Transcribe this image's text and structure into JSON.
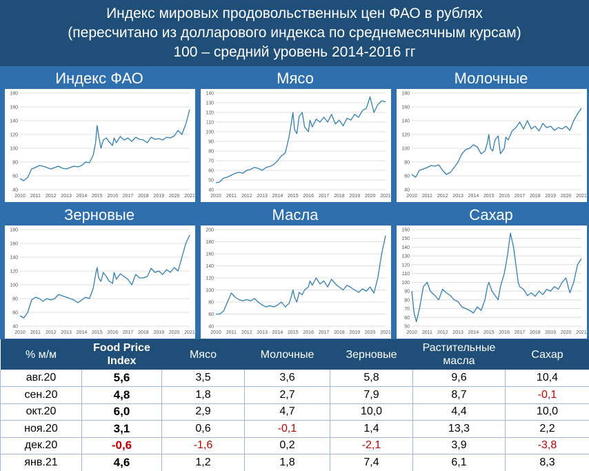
{
  "header": {
    "line1": "Индекс мировых продовольственных цен ФАО в рублях",
    "line2": "(пересчитано из долларового индекса по среднемесячным курсам)",
    "line3": "100 – средний уровень 2014-2016 гг"
  },
  "colors": {
    "header_bg": "#1f4e79",
    "panel_bg": "#2f6fad",
    "line": "#2f7fb5",
    "negative": "#c00000"
  },
  "chart_data": [
    {
      "type": "line",
      "title": "Индекс ФАО",
      "x_ticks": [
        "2010",
        "2011",
        "2012",
        "2013",
        "2014",
        "2015",
        "2016",
        "2017",
        "2018",
        "2019",
        "2020",
        "2021"
      ],
      "ylim": [
        40,
        180
      ],
      "y_ticks": [
        40,
        60,
        80,
        100,
        120,
        140,
        160,
        180
      ],
      "grid": true,
      "x": [
        2010.0,
        2010.25,
        2010.5,
        2010.75,
        2011.0,
        2011.25,
        2011.5,
        2011.75,
        2012.0,
        2012.25,
        2012.5,
        2012.75,
        2013.0,
        2013.25,
        2013.5,
        2013.75,
        2014.0,
        2014.25,
        2014.5,
        2014.75,
        2014.9,
        2015.0,
        2015.1,
        2015.25,
        2015.4,
        2015.6,
        2015.75,
        2016.0,
        2016.1,
        2016.25,
        2016.5,
        2016.75,
        2017.0,
        2017.25,
        2017.5,
        2017.75,
        2018.0,
        2018.25,
        2018.5,
        2018.75,
        2019.0,
        2019.25,
        2019.5,
        2019.75,
        2020.0,
        2020.25,
        2020.5,
        2020.75,
        2021.0
      ],
      "y": [
        56,
        53,
        58,
        70,
        72,
        75,
        74,
        72,
        70,
        72,
        74,
        71,
        70,
        72,
        74,
        73,
        75,
        80,
        79,
        90,
        108,
        133,
        118,
        100,
        112,
        115,
        110,
        104,
        115,
        108,
        117,
        112,
        115,
        110,
        116,
        113,
        112,
        108,
        116,
        113,
        114,
        112,
        116,
        115,
        118,
        126,
        120,
        135,
        156
      ]
    },
    {
      "type": "line",
      "title": "Мясо",
      "x_ticks": [
        "2010",
        "2011",
        "2012",
        "2013",
        "2014",
        "2015",
        "2016",
        "2017",
        "2018",
        "2019",
        "2020",
        "2021"
      ],
      "ylim": [
        40,
        140
      ],
      "y_ticks": [
        40,
        50,
        60,
        70,
        80,
        90,
        100,
        110,
        120,
        130,
        140
      ],
      "grid": true,
      "x": [
        2010.0,
        2010.25,
        2010.5,
        2010.75,
        2011.0,
        2011.25,
        2011.5,
        2011.75,
        2012.0,
        2012.25,
        2012.5,
        2012.75,
        2013.0,
        2013.25,
        2013.5,
        2013.75,
        2014.0,
        2014.25,
        2014.5,
        2014.75,
        2014.9,
        2015.0,
        2015.1,
        2015.25,
        2015.4,
        2015.6,
        2015.75,
        2016.0,
        2016.1,
        2016.25,
        2016.5,
        2016.75,
        2017.0,
        2017.25,
        2017.5,
        2017.75,
        2018.0,
        2018.25,
        2018.5,
        2018.75,
        2019.0,
        2019.25,
        2019.5,
        2019.75,
        2020.0,
        2020.25,
        2020.5,
        2020.75,
        2021.0
      ],
      "y": [
        47,
        48,
        52,
        53,
        55,
        57,
        58,
        57,
        60,
        61,
        63,
        62,
        60,
        63,
        64,
        66,
        70,
        75,
        78,
        95,
        110,
        120,
        102,
        98,
        116,
        120,
        105,
        100,
        112,
        105,
        113,
        110,
        115,
        110,
        118,
        108,
        112,
        106,
        114,
        112,
        118,
        115,
        122,
        124,
        136,
        120,
        128,
        132,
        131
      ]
    },
    {
      "type": "line",
      "title": "Молочные",
      "x_ticks": [
        "2010",
        "2011",
        "2012",
        "2013",
        "2014",
        "2015",
        "2016",
        "2017",
        "2018",
        "2019",
        "2020",
        "2021"
      ],
      "ylim": [
        40,
        180
      ],
      "y_ticks": [
        40,
        60,
        80,
        100,
        120,
        140,
        160,
        180
      ],
      "grid": true,
      "x": [
        2010.0,
        2010.25,
        2010.5,
        2010.75,
        2011.0,
        2011.25,
        2011.5,
        2011.75,
        2012.0,
        2012.25,
        2012.5,
        2012.75,
        2013.0,
        2013.25,
        2013.5,
        2013.75,
        2014.0,
        2014.25,
        2014.5,
        2014.75,
        2014.9,
        2015.0,
        2015.1,
        2015.25,
        2015.4,
        2015.6,
        2015.75,
        2016.0,
        2016.1,
        2016.25,
        2016.5,
        2016.75,
        2017.0,
        2017.25,
        2017.5,
        2017.75,
        2018.0,
        2018.25,
        2018.5,
        2018.75,
        2019.0,
        2019.25,
        2019.5,
        2019.75,
        2020.0,
        2020.25,
        2020.5,
        2020.75,
        2021.0
      ],
      "y": [
        62,
        58,
        68,
        70,
        72,
        75,
        74,
        76,
        68,
        62,
        65,
        72,
        80,
        92,
        98,
        100,
        105,
        102,
        92,
        96,
        108,
        120,
        100,
        96,
        112,
        118,
        92,
        100,
        116,
        112,
        125,
        130,
        138,
        128,
        140,
        128,
        132,
        125,
        136,
        130,
        132,
        126,
        130,
        128,
        132,
        126,
        140,
        150,
        158
      ]
    },
    {
      "type": "line",
      "title": "Зерновые",
      "x_ticks": [
        "2010",
        "2011",
        "2012",
        "2013",
        "2014",
        "2015",
        "2016",
        "2017",
        "2018",
        "2019",
        "2020",
        "2021"
      ],
      "ylim": [
        40,
        180
      ],
      "y_ticks": [
        40,
        60,
        80,
        100,
        120,
        140,
        160,
        180
      ],
      "grid": true,
      "x": [
        2010.0,
        2010.25,
        2010.5,
        2010.75,
        2011.0,
        2011.25,
        2011.5,
        2011.75,
        2012.0,
        2012.25,
        2012.5,
        2012.75,
        2013.0,
        2013.25,
        2013.5,
        2013.75,
        2014.0,
        2014.25,
        2014.5,
        2014.75,
        2014.9,
        2015.0,
        2015.1,
        2015.25,
        2015.4,
        2015.6,
        2015.75,
        2016.0,
        2016.1,
        2016.25,
        2016.5,
        2016.75,
        2017.0,
        2017.25,
        2017.5,
        2017.75,
        2018.0,
        2018.25,
        2018.5,
        2018.75,
        2019.0,
        2019.25,
        2019.5,
        2019.75,
        2020.0,
        2020.25,
        2020.5,
        2020.75,
        2021.0
      ],
      "y": [
        55,
        52,
        60,
        78,
        82,
        80,
        76,
        80,
        78,
        80,
        86,
        84,
        82,
        80,
        78,
        74,
        78,
        82,
        80,
        95,
        115,
        125,
        110,
        105,
        118,
        112,
        106,
        102,
        118,
        108,
        116,
        112,
        108,
        100,
        115,
        110,
        110,
        112,
        124,
        118,
        120,
        115,
        122,
        118,
        125,
        120,
        140,
        160,
        172
      ]
    },
    {
      "type": "line",
      "title": "Масла",
      "x_ticks": [
        "2010",
        "2011",
        "2012",
        "2013",
        "2014",
        "2015",
        "2016",
        "2017",
        "2018",
        "2019",
        "2020",
        "2021"
      ],
      "ylim": [
        40,
        200
      ],
      "y_ticks": [
        40,
        60,
        80,
        100,
        120,
        140,
        160,
        180,
        200
      ],
      "grid": true,
      "x": [
        2010.0,
        2010.25,
        2010.5,
        2010.75,
        2011.0,
        2011.25,
        2011.5,
        2011.75,
        2012.0,
        2012.25,
        2012.5,
        2012.75,
        2013.0,
        2013.25,
        2013.5,
        2013.75,
        2014.0,
        2014.25,
        2014.5,
        2014.75,
        2014.9,
        2015.0,
        2015.1,
        2015.25,
        2015.4,
        2015.6,
        2015.75,
        2016.0,
        2016.1,
        2016.25,
        2016.5,
        2016.75,
        2017.0,
        2017.25,
        2017.5,
        2017.75,
        2018.0,
        2018.25,
        2018.5,
        2018.75,
        2019.0,
        2019.25,
        2019.5,
        2019.75,
        2020.0,
        2020.25,
        2020.5,
        2020.75,
        2021.0
      ],
      "y": [
        60,
        60,
        65,
        80,
        95,
        88,
        84,
        82,
        84,
        82,
        86,
        80,
        75,
        72,
        74,
        72,
        75,
        80,
        72,
        78,
        90,
        100,
        88,
        80,
        96,
        92,
        100,
        105,
        115,
        108,
        120,
        110,
        115,
        105,
        118,
        110,
        105,
        100,
        108,
        104,
        100,
        96,
        102,
        98,
        105,
        95,
        120,
        160,
        190
      ]
    },
    {
      "type": "line",
      "title": "Сахар",
      "x_ticks": [
        "2010",
        "2011",
        "2012",
        "2013",
        "2014",
        "2015",
        "2016",
        "2017",
        "2018",
        "2019",
        "2020",
        "2021"
      ],
      "ylim": [
        50,
        160
      ],
      "y_ticks": [
        50,
        60,
        70,
        80,
        90,
        100,
        110,
        120,
        130,
        140,
        150,
        160
      ],
      "grid": true,
      "x": [
        2010.0,
        2010.15,
        2010.3,
        2010.5,
        2010.75,
        2011.0,
        2011.2,
        2011.5,
        2011.75,
        2012.0,
        2012.25,
        2012.5,
        2012.75,
        2013.0,
        2013.25,
        2013.5,
        2013.75,
        2014.0,
        2014.25,
        2014.5,
        2014.75,
        2014.9,
        2015.0,
        2015.2,
        2015.4,
        2015.6,
        2015.75,
        2016.0,
        2016.2,
        2016.4,
        2016.6,
        2016.75,
        2016.9,
        2017.0,
        2017.25,
        2017.5,
        2017.75,
        2018.0,
        2018.25,
        2018.5,
        2018.75,
        2019.0,
        2019.25,
        2019.5,
        2019.75,
        2020.0,
        2020.25,
        2020.5,
        2020.75,
        2021.0
      ],
      "y": [
        90,
        65,
        55,
        70,
        95,
        100,
        90,
        85,
        80,
        92,
        88,
        85,
        80,
        78,
        72,
        70,
        68,
        65,
        72,
        68,
        80,
        95,
        100,
        90,
        85,
        80,
        95,
        110,
        130,
        156,
        140,
        120,
        100,
        95,
        92,
        85,
        88,
        84,
        90,
        86,
        92,
        90,
        95,
        92,
        100,
        105,
        88,
        100,
        120,
        127
      ]
    }
  ],
  "table": {
    "header": [
      "% м/м",
      "Food Price Index",
      "Мясо",
      "Молочные",
      "Зерновые",
      "Растительные масла",
      "Сахар"
    ],
    "rows": [
      {
        "label": "авг.20",
        "values": [
          "5,6",
          "3,5",
          "3,6",
          "5,8",
          "9,6",
          "10,4"
        ]
      },
      {
        "label": "сен.20",
        "values": [
          "4,8",
          "1,8",
          "2,7",
          "7,9",
          "8,7",
          "-0,1"
        ]
      },
      {
        "label": "окт.20",
        "values": [
          "6,0",
          "2,9",
          "4,7",
          "10,0",
          "4,4",
          "10,0"
        ]
      },
      {
        "label": "ноя.20",
        "values": [
          "3,1",
          "0,6",
          "-0,1",
          "1,4",
          "13,3",
          "2,2"
        ]
      },
      {
        "label": "дек.20",
        "values": [
          "-0,6",
          "-1,6",
          "0,2",
          "-2,1",
          "3,9",
          "-3,8"
        ]
      },
      {
        "label": "янв.21",
        "values": [
          "4,6",
          "1,2",
          "1,8",
          "7,4",
          "6,1",
          "8,3"
        ]
      }
    ]
  }
}
